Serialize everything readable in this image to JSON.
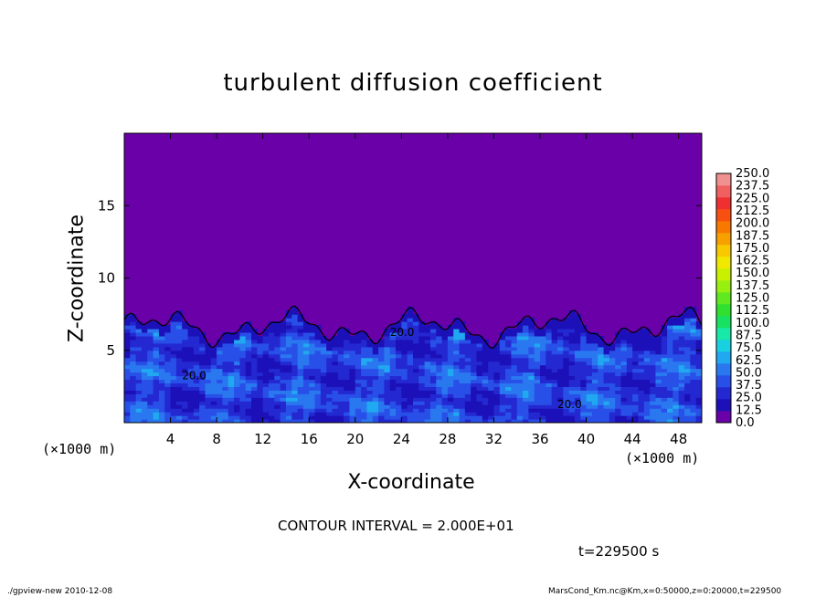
{
  "chart_data": {
    "type": "heatmap",
    "title": "turbulent diffusion coefficient",
    "xlabel": "X-coordinate",
    "ylabel": "Z-coordinate",
    "x_unit": "(×1000 m)",
    "x_unit_right": "(×1000 m)",
    "xlim": [
      0,
      50
    ],
    "ylim": [
      0,
      20
    ],
    "x_ticks": [
      4,
      8,
      12,
      16,
      20,
      24,
      28,
      32,
      36,
      40,
      44,
      48
    ],
    "y_ticks": [
      5,
      10,
      15
    ],
    "colorbar": {
      "levels": [
        0.0,
        12.5,
        25.0,
        37.5,
        50.0,
        62.5,
        75.0,
        87.5,
        100.0,
        112.5,
        125.0,
        137.5,
        150.0,
        162.5,
        175.0,
        187.5,
        200.0,
        212.5,
        225.0,
        237.5,
        250.0
      ],
      "labels": [
        "0.0",
        "12.5",
        "25.0",
        "37.5",
        "50.0",
        "62.5",
        "75.0",
        "87.5",
        "100.0",
        "112.5",
        "125.0",
        "137.5",
        "150.0",
        "162.5",
        "175.0",
        "187.5",
        "200.0",
        "212.5",
        "225.0",
        "237.5",
        "250.0"
      ],
      "colors": [
        "#6a00a8",
        "#1c10b8",
        "#2428d0",
        "#2850e8",
        "#2a78f0",
        "#20a8f0",
        "#18d0e0",
        "#18e8a8",
        "#18e060",
        "#30e030",
        "#60e820",
        "#98f010",
        "#c8f000",
        "#f0e800",
        "#f8c800",
        "#f8a000",
        "#f87800",
        "#f85010",
        "#f03030",
        "#f06060",
        "#f09090"
      ]
    },
    "contour_labels": [
      "20.0",
      "20.0",
      "20.0"
    ],
    "background_value": 0.0
  },
  "contour_note": "CONTOUR INTERVAL = 2.000E+01",
  "time_label": "t=229500 s",
  "footer_left": "./gpview-new   2010-12-08",
  "footer_right": "MarsCond_Km.nc@Km,x=0:50000,z=0:20000,t=229500"
}
